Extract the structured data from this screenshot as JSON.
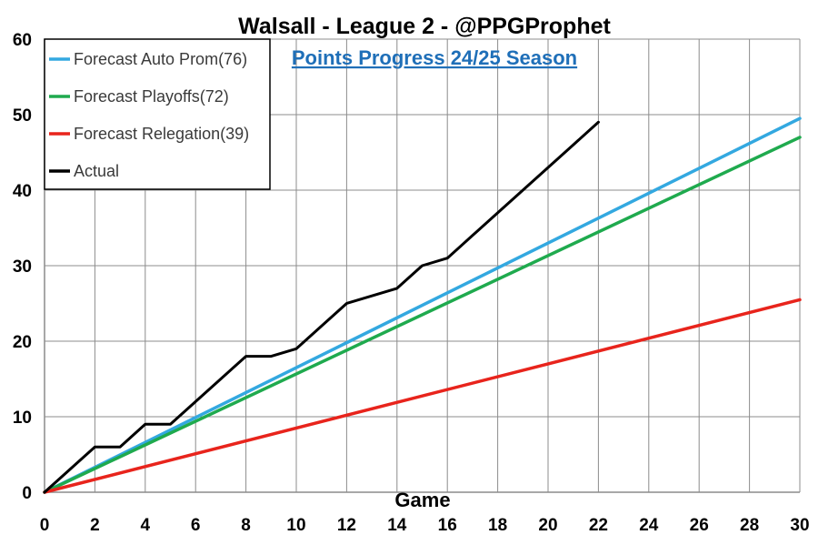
{
  "chart_data": {
    "type": "line",
    "title": "Walsall - League 2 - @PPGProphet",
    "subtitle": "Points Progress 24/25 Season",
    "xlabel": "Game",
    "ylabel": "",
    "xlim": [
      0,
      30
    ],
    "ylim": [
      0,
      60
    ],
    "x_ticks": [
      "0",
      "2",
      "4",
      "6",
      "8",
      "10",
      "12",
      "14",
      "16",
      "18",
      "20",
      "22",
      "24",
      "26",
      "28",
      "30"
    ],
    "y_ticks": [
      "0",
      "10",
      "20",
      "30",
      "40",
      "50",
      "60"
    ],
    "grid": true,
    "legend_position": "top-left",
    "series": [
      {
        "name": "Forecast Auto Prom(76)",
        "color": "#33a8e0",
        "points": [
          [
            0,
            0
          ],
          [
            30,
            49.5
          ]
        ]
      },
      {
        "name": "Forecast Playoffs(72)",
        "color": "#1faa4e",
        "points": [
          [
            0,
            0
          ],
          [
            30,
            47
          ]
        ]
      },
      {
        "name": "Forecast Relegation(39)",
        "color": "#e8241c",
        "points": [
          [
            0,
            0
          ],
          [
            30,
            25.5
          ]
        ]
      },
      {
        "name": "Actual",
        "color": "#000000",
        "points": [
          [
            0,
            0
          ],
          [
            1,
            3
          ],
          [
            2,
            6
          ],
          [
            3,
            6
          ],
          [
            4,
            9
          ],
          [
            5,
            9
          ],
          [
            6,
            12
          ],
          [
            7,
            15
          ],
          [
            8,
            18
          ],
          [
            9,
            18
          ],
          [
            10,
            19
          ],
          [
            11,
            22
          ],
          [
            12,
            25
          ],
          [
            13,
            26
          ],
          [
            14,
            27
          ],
          [
            15,
            30
          ],
          [
            16,
            31
          ],
          [
            17,
            34
          ],
          [
            18,
            37
          ],
          [
            19,
            40
          ],
          [
            20,
            43
          ],
          [
            21,
            46
          ],
          [
            22,
            49
          ]
        ]
      }
    ]
  }
}
